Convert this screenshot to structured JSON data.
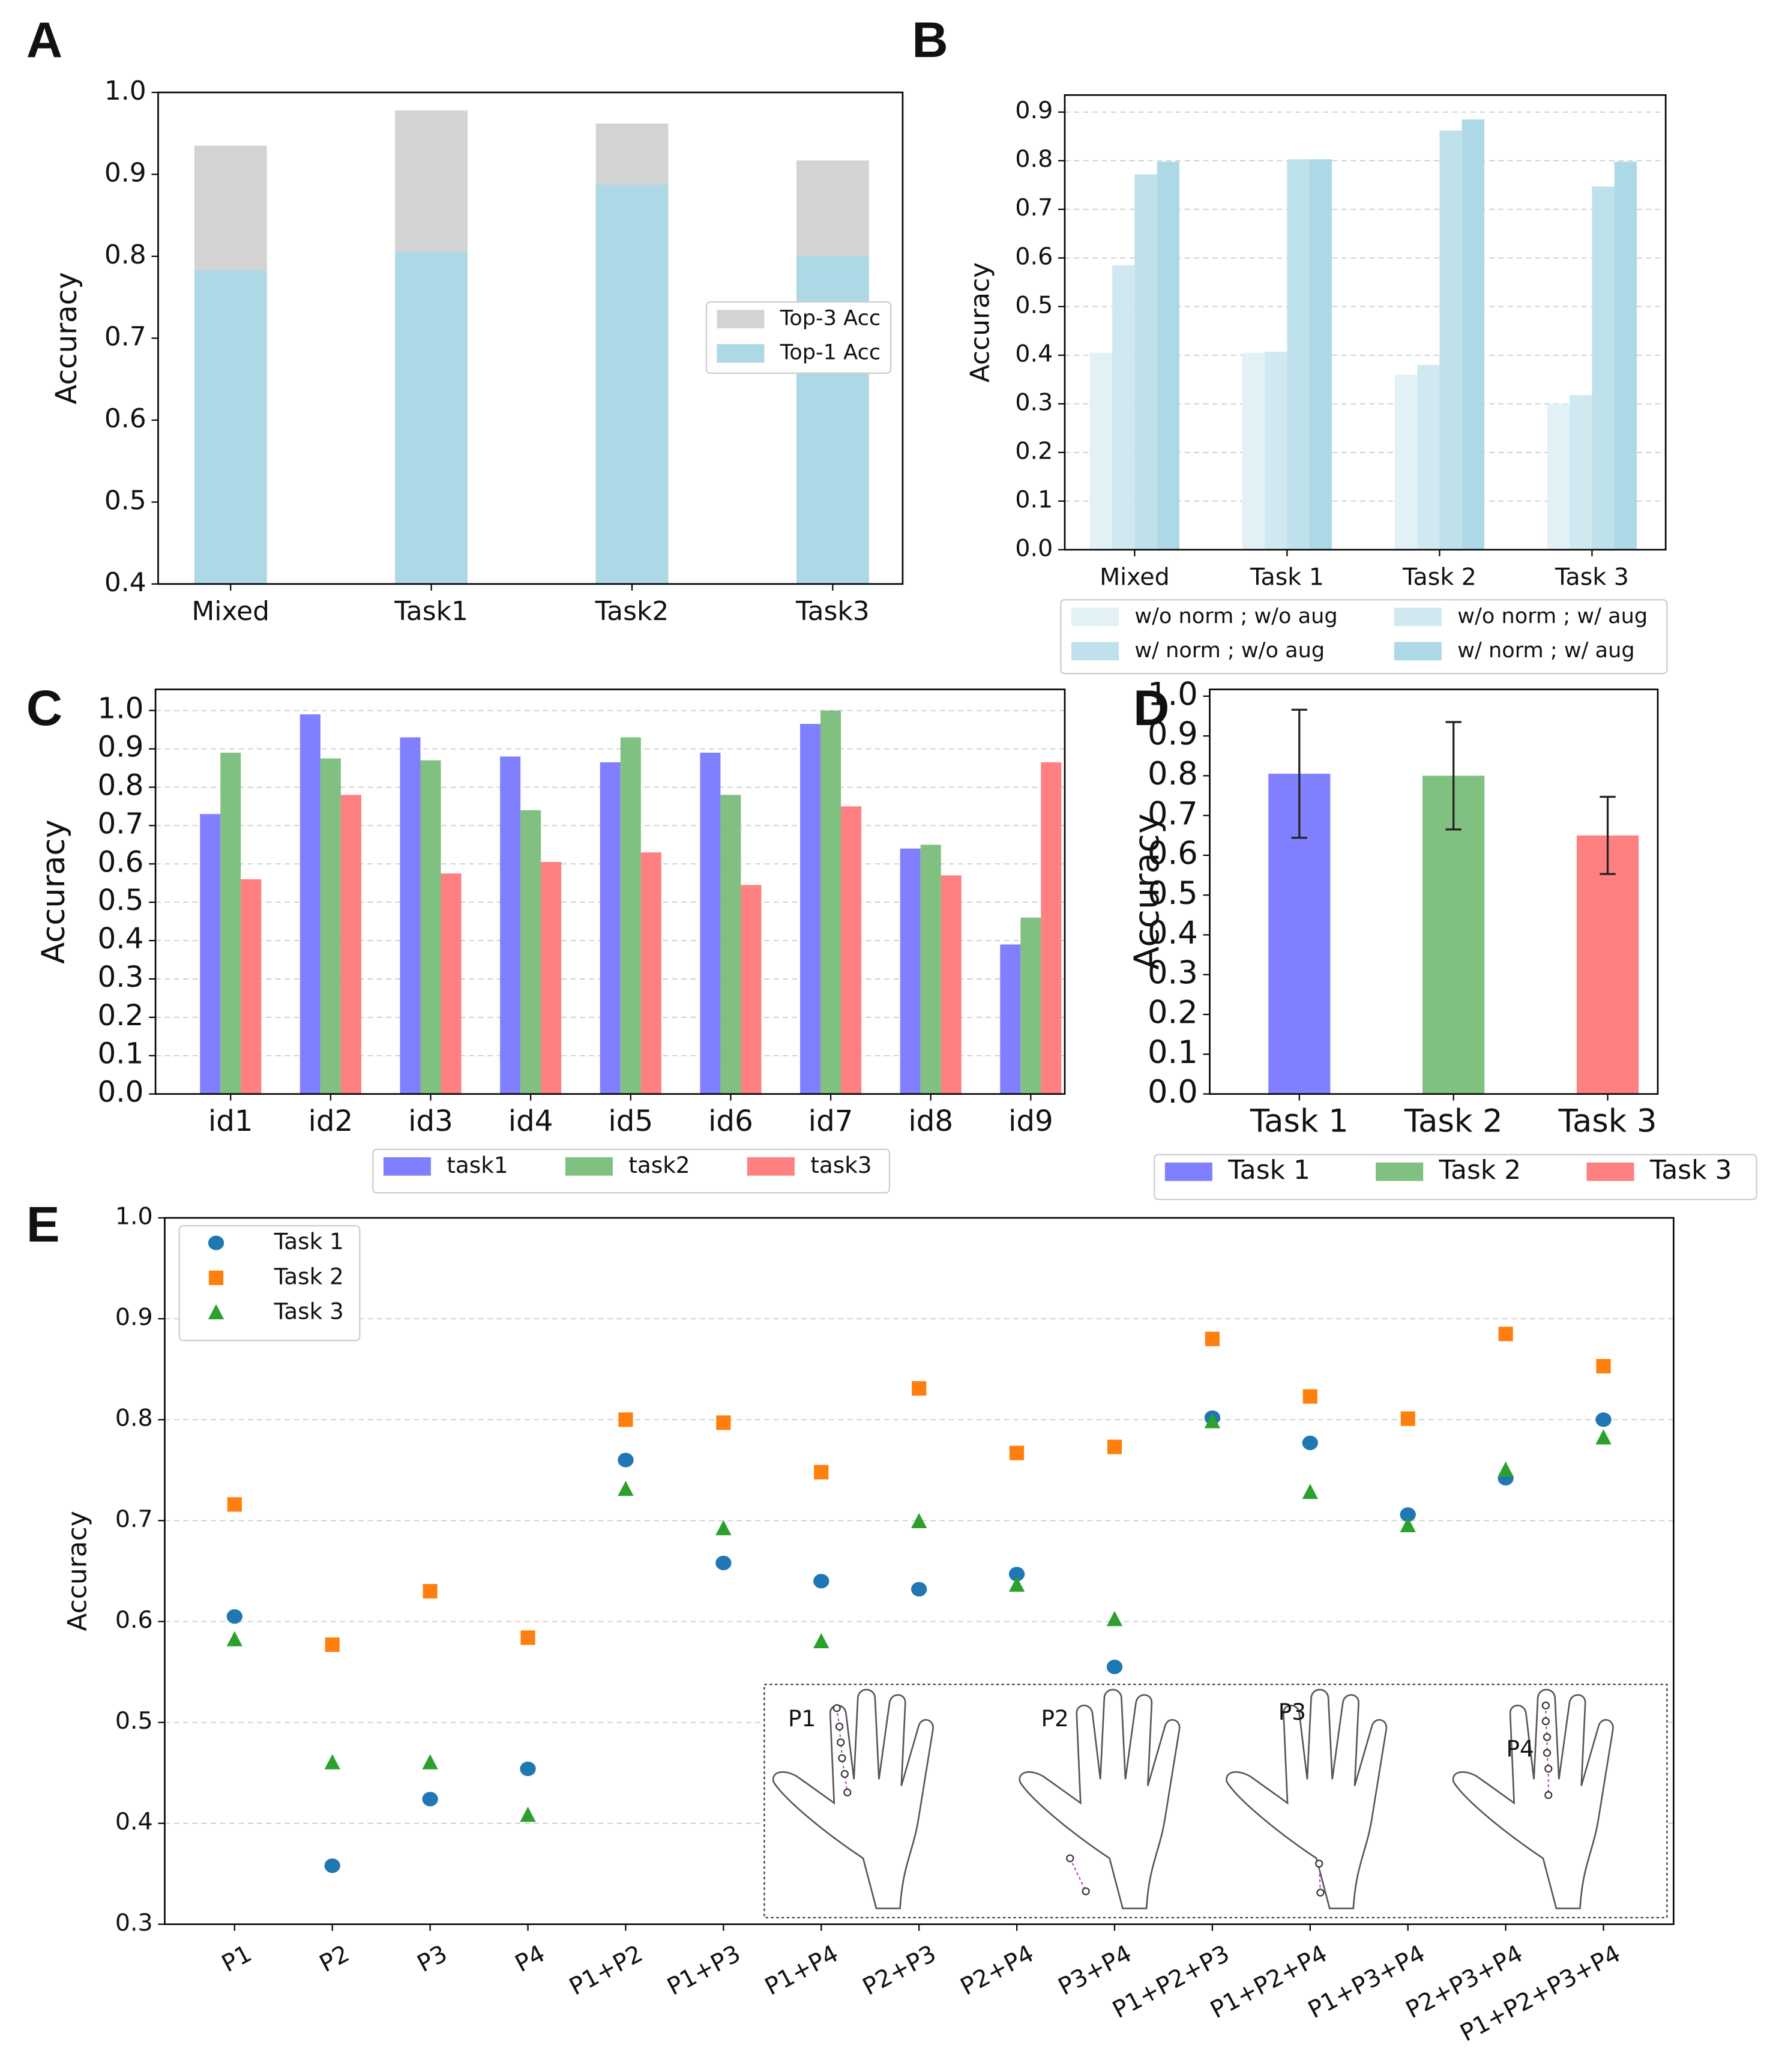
{
  "chart_data": [
    {
      "panel": "A",
      "type": "bar",
      "barmode": "overlay",
      "ylabel": "Accuracy",
      "categories": [
        "Mixed",
        "Task1",
        "Task2",
        "Task3"
      ],
      "series": [
        {
          "name": "Top-3 Acc",
          "color": "#d3d3d3",
          "values": [
            0.935,
            0.978,
            0.962,
            0.917
          ]
        },
        {
          "name": "Top-1 Acc",
          "color": "#add8e6",
          "values": [
            0.783,
            0.805,
            0.887,
            0.8
          ]
        }
      ],
      "ylim": [
        0.4,
        1.0
      ],
      "yticks": [
        0.4,
        0.5,
        0.6,
        0.7,
        0.8,
        0.9,
        {
          "value": 1,
          "label": "1.0"
        }
      ],
      "grid": false,
      "legend": "center right"
    },
    {
      "panel": "B",
      "type": "bar",
      "barmode": "group",
      "ylabel": "Accuracy",
      "categories": [
        "Mixed",
        "Task 1",
        "Task 2",
        "Task 3"
      ],
      "series": [
        {
          "name": "w/o norm ; w/o aug",
          "color": "#e2f1f6",
          "values": [
            0.405,
            0.405,
            0.36,
            0.3
          ]
        },
        {
          "name": "w/o norm ; w/ aug",
          "color": "#d0e9f1",
          "values": [
            0.585,
            0.407,
            0.38,
            0.318
          ]
        },
        {
          "name": "w/ norm ; w/o aug",
          "color": "#bee1ec",
          "values": [
            0.772,
            0.803,
            0.862,
            0.747
          ]
        },
        {
          "name": "w/ norm ; w/ aug",
          "color": "#add8e6",
          "values": [
            0.798,
            0.803,
            0.885,
            0.798
          ]
        }
      ],
      "ylim": [
        0,
        0.935
      ],
      "yticks": [
        {
          "value": 0,
          "label": "0.0"
        },
        0.1,
        0.2,
        0.3,
        0.4,
        0.5,
        0.6,
        0.7,
        0.8,
        0.9
      ],
      "grid": true,
      "legend": "below"
    },
    {
      "panel": "C",
      "type": "bar",
      "barmode": "group",
      "ylabel": "Accuracy",
      "categories": [
        "id1",
        "id2",
        "id3",
        "id4",
        "id5",
        "id6",
        "id7",
        "id8",
        "id9"
      ],
      "series": [
        {
          "name": "task1",
          "color": "#8080ff",
          "values": [
            0.73,
            0.99,
            0.93,
            0.88,
            0.865,
            0.89,
            0.965,
            0.64,
            0.39
          ]
        },
        {
          "name": "task2",
          "color": "#80c080",
          "values": [
            0.89,
            0.875,
            0.87,
            0.74,
            0.93,
            0.78,
            1.0,
            0.65,
            0.46
          ]
        },
        {
          "name": "task3",
          "color": "#ff8080",
          "values": [
            0.56,
            0.78,
            0.575,
            0.605,
            0.63,
            0.545,
            0.75,
            0.57,
            0.865
          ]
        }
      ],
      "ylim": [
        0,
        1.055
      ],
      "yticks": [
        {
          "value": 0,
          "label": "0.0"
        },
        0.1,
        0.2,
        0.3,
        0.4,
        0.5,
        0.6,
        0.7,
        0.8,
        0.9,
        {
          "value": 1,
          "label": "1.0"
        }
      ],
      "grid": true,
      "legend": "below"
    },
    {
      "panel": "D",
      "type": "errorbar",
      "ylabel": "Accuracy",
      "categories": [
        "Task 1",
        "Task 2",
        "Task 3"
      ],
      "values": [
        0.805,
        0.8,
        0.65
      ],
      "errors": [
        0.161,
        0.135,
        0.097
      ],
      "colors": [
        "#8080ff",
        "#80c080",
        "#ff8080"
      ],
      "ylim": [
        0,
        1.017
      ],
      "yticks": [
        {
          "value": 0,
          "label": "0.0"
        },
        0.1,
        0.2,
        0.3,
        0.4,
        0.5,
        0.6,
        0.7,
        0.8,
        0.9,
        {
          "value": 1,
          "label": "1.0"
        }
      ],
      "grid": false,
      "legend": "below"
    },
    {
      "panel": "E",
      "type": "scatter",
      "ylabel": "Accuracy",
      "categories": [
        "P1",
        "P2",
        "P3",
        "P4",
        "P1+P2",
        "P1+P3",
        "P1+P4",
        "P2+P3",
        "P2+P4",
        "P3+P4",
        "P1+P2+P3",
        "P1+P2+P4",
        "P1+P3+P4",
        "P2+P3+P4",
        "P1+P2+P3+P4"
      ],
      "series": [
        {
          "name": "Task 1",
          "color": "#1f77b4",
          "marker": "circle",
          "values": [
            0.605,
            0.358,
            0.424,
            0.454,
            0.76,
            0.658,
            0.64,
            0.632,
            0.647,
            0.555,
            0.802,
            0.777,
            0.706,
            0.742,
            0.8
          ]
        },
        {
          "name": "Task 2",
          "color": "#ff7f0e",
          "marker": "square",
          "values": [
            0.716,
            0.577,
            0.63,
            0.584,
            0.8,
            0.797,
            0.748,
            0.831,
            0.767,
            0.773,
            0.88,
            0.823,
            0.801,
            0.885,
            0.853
          ]
        },
        {
          "name": "Task 3",
          "color": "#2ca02c",
          "marker": "triangle",
          "values": [
            0.582,
            0.46,
            0.46,
            0.408,
            0.731,
            0.692,
            0.58,
            0.699,
            0.636,
            0.602,
            0.798,
            0.728,
            0.695,
            0.75,
            0.782
          ]
        }
      ],
      "ylim": [
        0.3,
        1.0
      ],
      "yticks": [
        0.3,
        0.4,
        0.5,
        0.6,
        0.7,
        0.8,
        0.9,
        {
          "value": 1,
          "label": "1.0"
        }
      ],
      "grid": true,
      "legend": "upper left",
      "inset_labels": [
        "P1",
        "P2",
        "P3",
        "P4"
      ]
    }
  ]
}
